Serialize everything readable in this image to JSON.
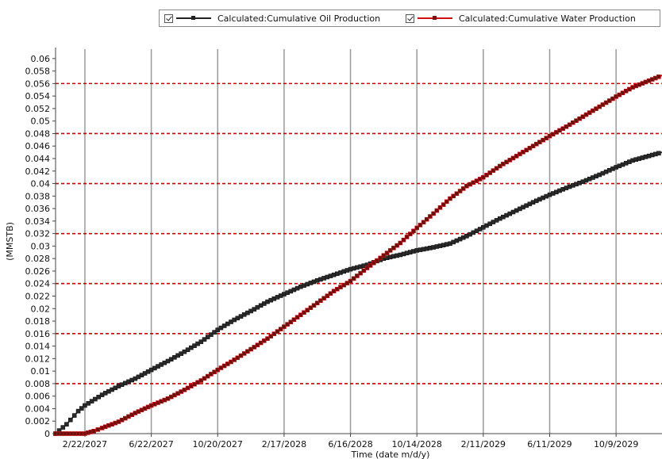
{
  "legend": {
    "items": [
      {
        "label": "Calculated:Cumulative Oil Production",
        "color": "#222222",
        "marker_color": "#222222"
      },
      {
        "label": "Calculated:Cumulative Water Production",
        "color": "#d01010",
        "marker_color": "#7a1010"
      }
    ]
  },
  "chart_data": {
    "type": "line",
    "xlabel": "Time (date m/d/y)",
    "ylabel": "(MMSTB)",
    "x_ticks": [
      "2/22/2027",
      "6/22/2027",
      "10/20/2027",
      "2/17/2028",
      "6/16/2028",
      "10/14/2028",
      "2/11/2029",
      "6/11/2029",
      "10/9/2029"
    ],
    "y_ticks": [
      0,
      0.002,
      0.004,
      0.006,
      0.008,
      0.01,
      0.012,
      0.014,
      0.016,
      0.018,
      0.02,
      0.022,
      0.024,
      0.026,
      0.028,
      0.03,
      0.032,
      0.034,
      0.036,
      0.038,
      0.04,
      0.042,
      0.044,
      0.046,
      0.048,
      0.05,
      0.052,
      0.054,
      0.056,
      0.058,
      0.06
    ],
    "ylim": [
      0,
      0.0615
    ],
    "xlim": [
      "12/31/2026",
      "12/31/2029"
    ],
    "grid": {
      "x": "solid gray",
      "y": "dashed red at major ticks",
      "y_major_every": 0.008
    },
    "series": [
      {
        "name": "Calculated:Cumulative Oil Production",
        "color": "#222222",
        "points": [
          [
            "12/31/2026",
            0
          ],
          [
            "1/20/2027",
            0.0015
          ],
          [
            "2/10/2027",
            0.0036
          ],
          [
            "2/22/2027",
            0.0045
          ],
          [
            "3/25/2027",
            0.0062
          ],
          [
            "4/24/2027",
            0.0076
          ],
          [
            "5/24/2027",
            0.0088
          ],
          [
            "6/22/2027",
            0.0102
          ],
          [
            "7/22/2027",
            0.0116
          ],
          [
            "8/21/2027",
            0.0131
          ],
          [
            "9/20/2027",
            0.0147
          ],
          [
            "10/20/2027",
            0.0166
          ],
          [
            "11/19/2027",
            0.0182
          ],
          [
            "12/19/2027",
            0.0196
          ],
          [
            "1/18/2028",
            0.0211
          ],
          [
            "2/17/2028",
            0.0223
          ],
          [
            "3/18/2028",
            0.0235
          ],
          [
            "4/17/2028",
            0.0245
          ],
          [
            "5/17/2028",
            0.0254
          ],
          [
            "6/16/2028",
            0.0263
          ],
          [
            "7/16/2028",
            0.027
          ],
          [
            "8/15/2028",
            0.028
          ],
          [
            "9/14/2028",
            0.0286
          ],
          [
            "10/14/2028",
            0.0293
          ],
          [
            "11/13/2028",
            0.0298
          ],
          [
            "12/13/2028",
            0.0304
          ],
          [
            "1/12/2029",
            0.0316
          ],
          [
            "2/11/2029",
            0.033
          ],
          [
            "3/13/2029",
            0.0344
          ],
          [
            "4/12/2029",
            0.0357
          ],
          [
            "5/12/2029",
            0.037
          ],
          [
            "6/11/2029",
            0.0382
          ],
          [
            "7/11/2029",
            0.0393
          ],
          [
            "8/10/2029",
            0.0403
          ],
          [
            "9/9/2029",
            0.0414
          ],
          [
            "10/9/2029",
            0.0426
          ],
          [
            "11/8/2029",
            0.0437
          ],
          [
            "12/31/2029",
            0.045
          ]
        ]
      },
      {
        "name": "Calculated:Cumulative Water Production",
        "color": "#d01010",
        "points": [
          [
            "12/31/2026",
            0
          ],
          [
            "2/22/2027",
            0.0
          ],
          [
            "3/10/2027",
            0.0004
          ],
          [
            "3/25/2027",
            0.0009
          ],
          [
            "4/24/2027",
            0.0019
          ],
          [
            "5/24/2027",
            0.0033
          ],
          [
            "6/22/2027",
            0.0045
          ],
          [
            "7/22/2027",
            0.0056
          ],
          [
            "8/21/2027",
            0.007
          ],
          [
            "9/20/2027",
            0.0085
          ],
          [
            "10/20/2027",
            0.0102
          ],
          [
            "11/19/2027",
            0.0118
          ],
          [
            "12/19/2027",
            0.0135
          ],
          [
            "1/18/2028",
            0.0152
          ],
          [
            "2/17/2028",
            0.0171
          ],
          [
            "3/18/2028",
            0.019
          ],
          [
            "4/17/2028",
            0.0209
          ],
          [
            "5/17/2028",
            0.0228
          ],
          [
            "6/16/2028",
            0.0244
          ],
          [
            "7/16/2028",
            0.0265
          ],
          [
            "8/15/2028",
            0.0285
          ],
          [
            "9/14/2028",
            0.0305
          ],
          [
            "10/14/2028",
            0.0329
          ],
          [
            "11/13/2028",
            0.0352
          ],
          [
            "12/13/2028",
            0.0376
          ],
          [
            "1/12/2029",
            0.0396
          ],
          [
            "2/11/2029",
            0.041
          ],
          [
            "3/13/2029",
            0.0428
          ],
          [
            "4/12/2029",
            0.0444
          ],
          [
            "5/12/2029",
            0.046
          ],
          [
            "6/11/2029",
            0.0476
          ],
          [
            "7/11/2029",
            0.0491
          ],
          [
            "8/10/2029",
            0.0507
          ],
          [
            "9/9/2029",
            0.0523
          ],
          [
            "10/9/2029",
            0.0539
          ],
          [
            "11/8/2029",
            0.0554
          ],
          [
            "12/31/2029",
            0.0573
          ]
        ]
      }
    ]
  }
}
